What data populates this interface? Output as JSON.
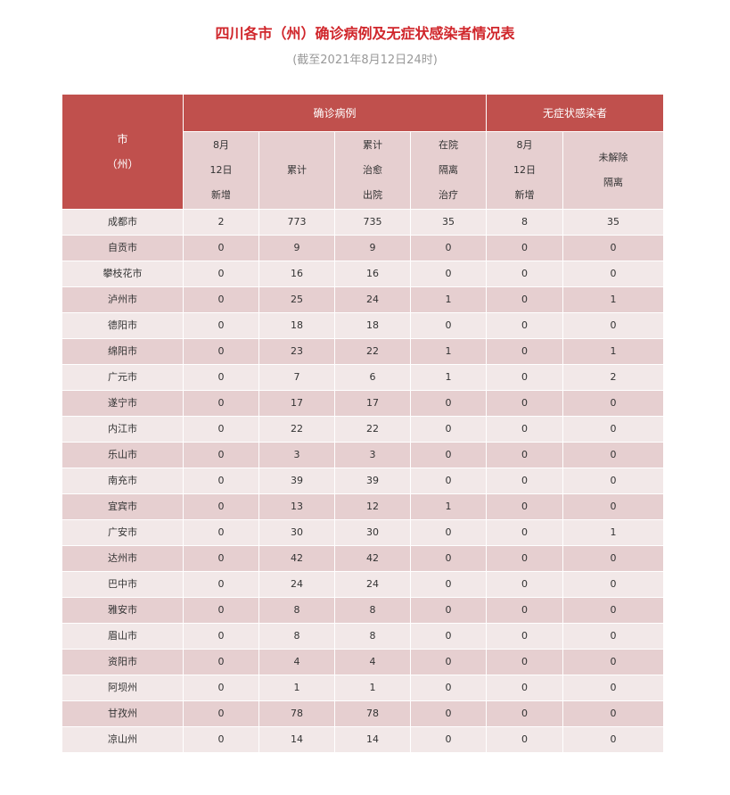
{
  "header": {
    "title": "四川各市（州）确诊病例及无症状感染者情况表",
    "subtitle": "(截至2021年8月12日24时)"
  },
  "table": {
    "corner": [
      "市",
      "（州）"
    ],
    "groups": [
      "确诊病例",
      "无症状感染者"
    ],
    "columns": [
      [
        "8月",
        "12日",
        "新增"
      ],
      [
        "累计"
      ],
      [
        "累计",
        "治愈",
        "出院"
      ],
      [
        "在院",
        "隔离",
        "治疗"
      ],
      [
        "8月",
        "12日",
        "新增"
      ],
      [
        "未解除",
        "隔离"
      ]
    ],
    "rows": [
      [
        "成都市",
        2,
        773,
        735,
        35,
        8,
        35
      ],
      [
        "自贡市",
        0,
        9,
        9,
        0,
        0,
        0
      ],
      [
        "攀枝花市",
        0,
        16,
        16,
        0,
        0,
        0
      ],
      [
        "泸州市",
        0,
        25,
        24,
        1,
        0,
        1
      ],
      [
        "德阳市",
        0,
        18,
        18,
        0,
        0,
        0
      ],
      [
        "绵阳市",
        0,
        23,
        22,
        1,
        0,
        1
      ],
      [
        "广元市",
        0,
        7,
        6,
        1,
        0,
        2
      ],
      [
        "遂宁市",
        0,
        17,
        17,
        0,
        0,
        0
      ],
      [
        "内江市",
        0,
        22,
        22,
        0,
        0,
        0
      ],
      [
        "乐山市",
        0,
        3,
        3,
        0,
        0,
        0
      ],
      [
        "南充市",
        0,
        39,
        39,
        0,
        0,
        0
      ],
      [
        "宜宾市",
        0,
        13,
        12,
        1,
        0,
        0
      ],
      [
        "广安市",
        0,
        30,
        30,
        0,
        0,
        1
      ],
      [
        "达州市",
        0,
        42,
        42,
        0,
        0,
        0
      ],
      [
        "巴中市",
        0,
        24,
        24,
        0,
        0,
        0
      ],
      [
        "雅安市",
        0,
        8,
        8,
        0,
        0,
        0
      ],
      [
        "眉山市",
        0,
        8,
        8,
        0,
        0,
        0
      ],
      [
        "资阳市",
        0,
        4,
        4,
        0,
        0,
        0
      ],
      [
        "阿坝州",
        0,
        1,
        1,
        0,
        0,
        0
      ],
      [
        "甘孜州",
        0,
        78,
        78,
        0,
        0,
        0
      ],
      [
        "凉山州",
        0,
        14,
        14,
        0,
        0,
        0
      ]
    ]
  }
}
